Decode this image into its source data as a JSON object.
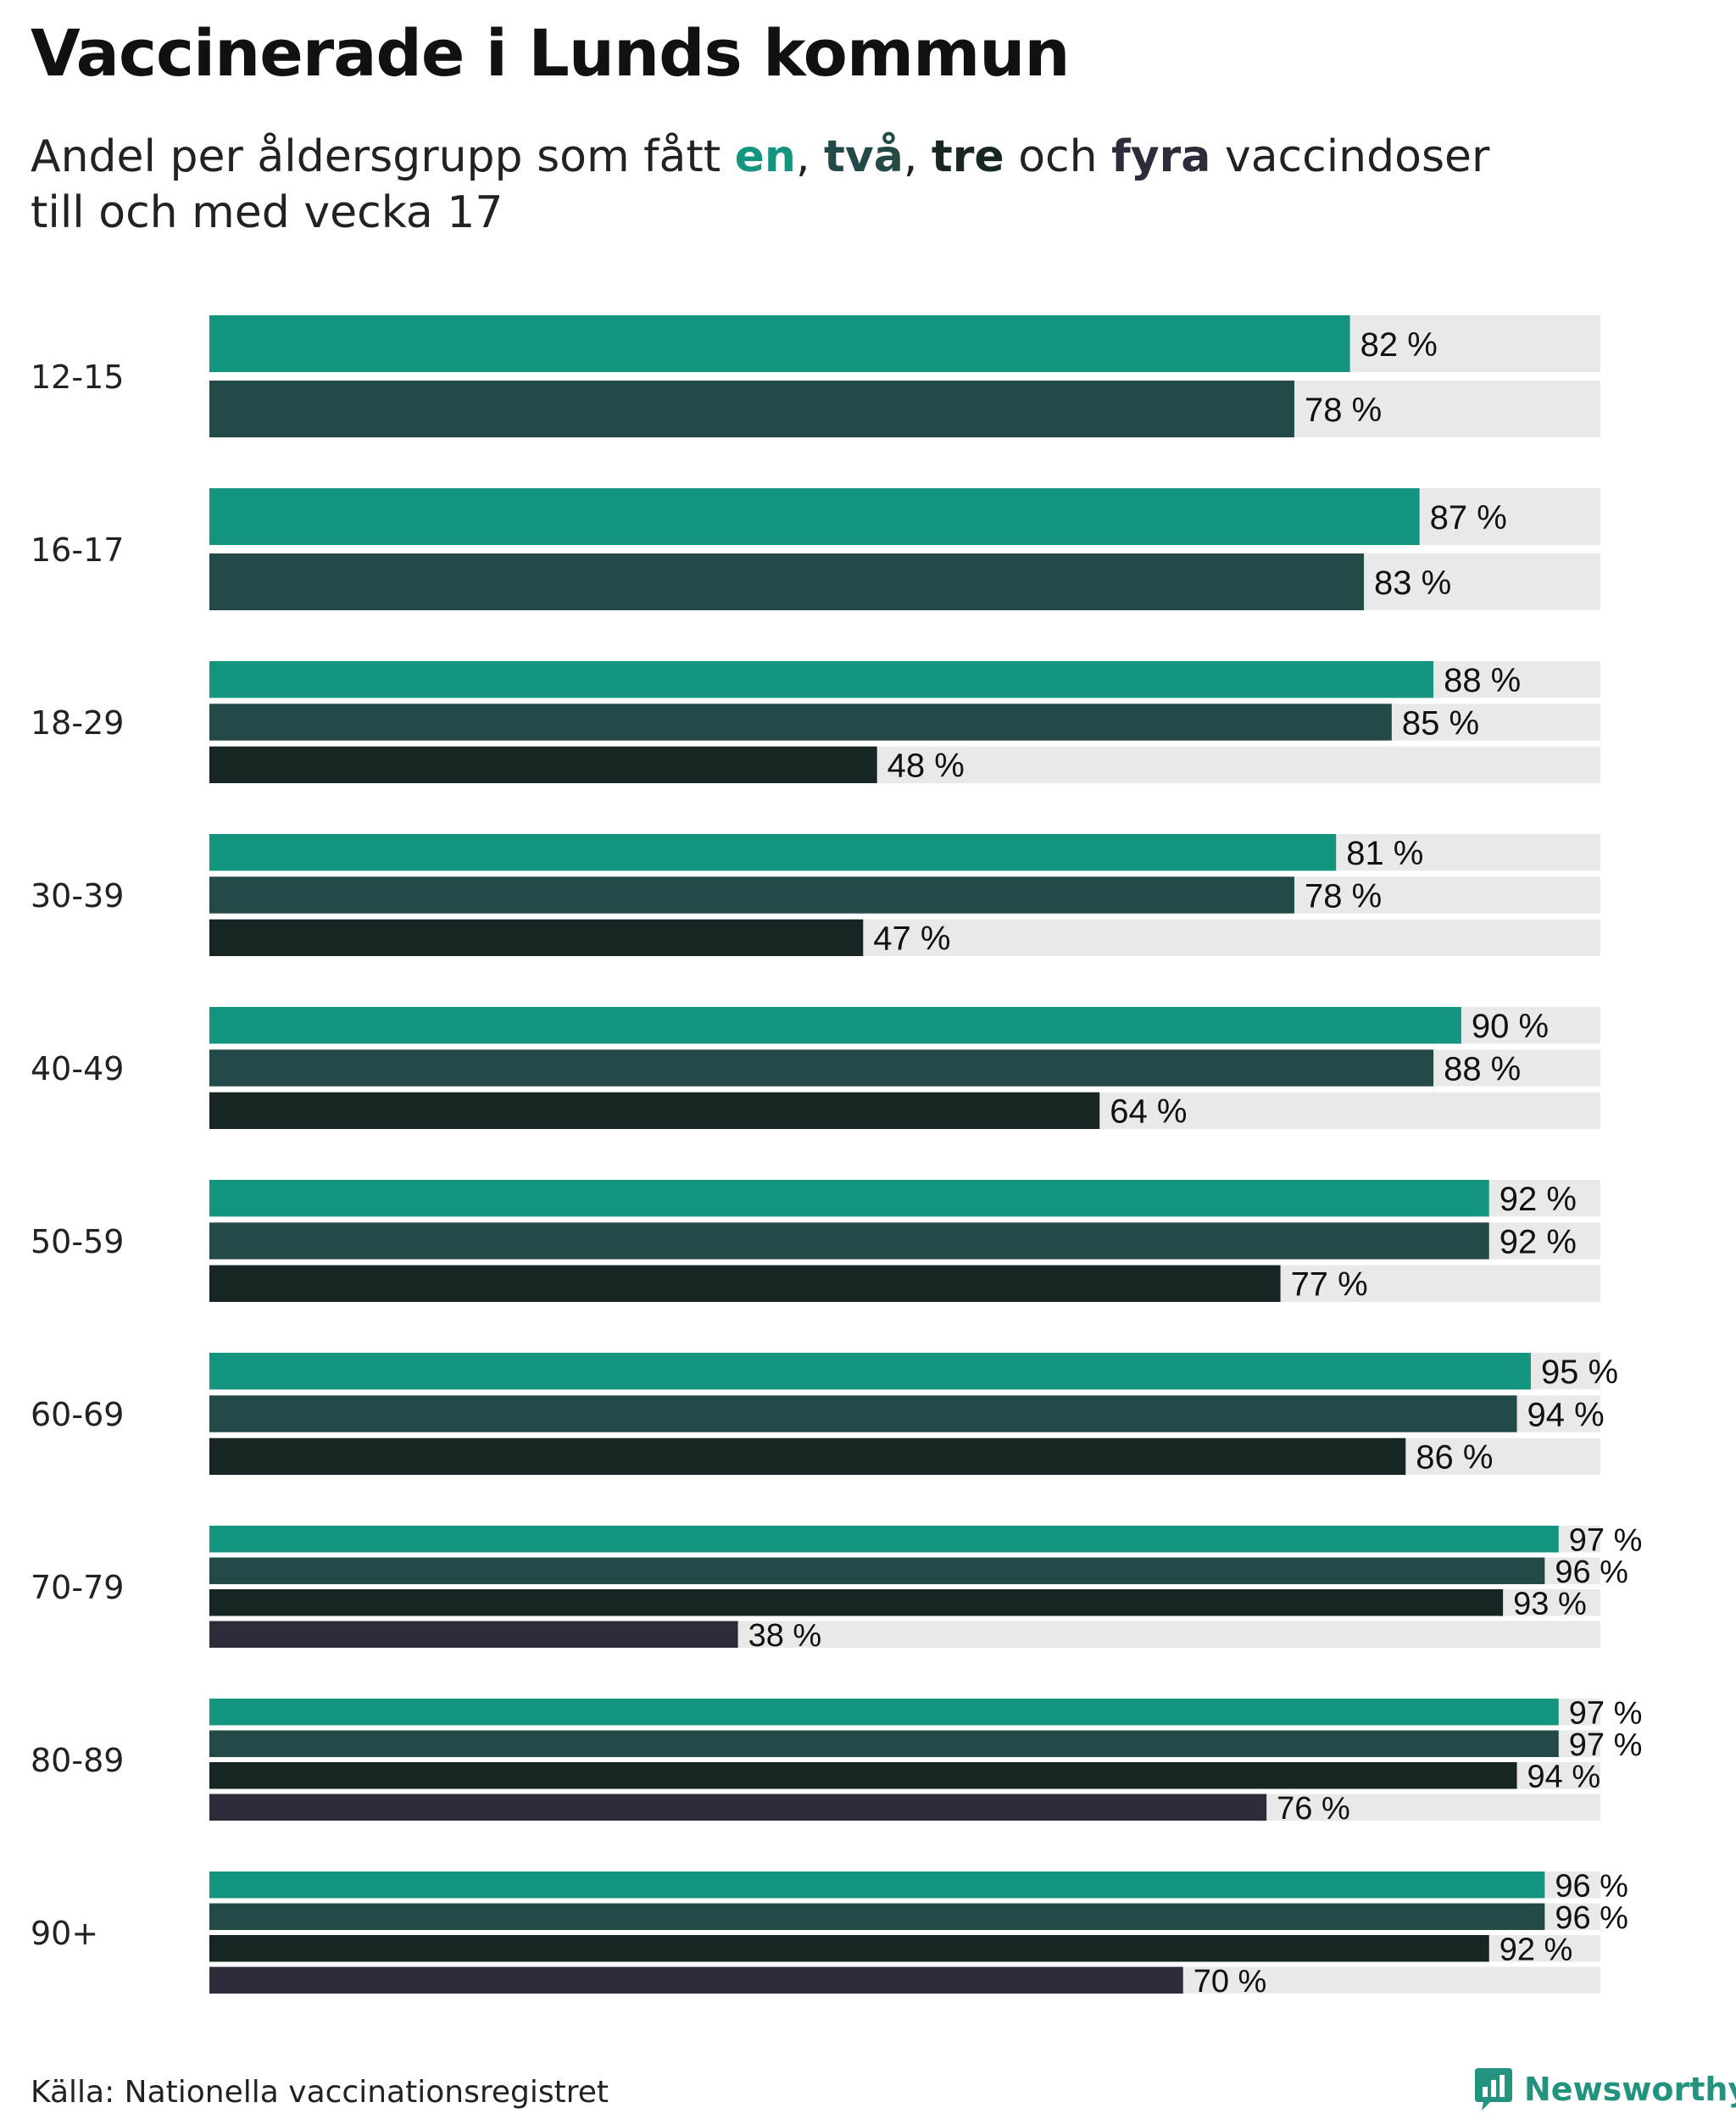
{
  "title": "Vaccinerade i Lunds kommun",
  "subtitle": {
    "pre": "Andel per åldersgrupp som fått ",
    "en": "en",
    "sep1": ", ",
    "tva": "två",
    "sep2": ", ",
    "tre": "tre",
    "och": " och ",
    "fyra": "fyra",
    "post": " vaccindoser",
    "line2": "till och med vecka 17"
  },
  "colors": {
    "en": "#14957f",
    "tva": "#244a47",
    "tre": "#172624",
    "fyra": "#2e2c3a",
    "track": "#e9e9e9"
  },
  "chart_data": {
    "type": "bar",
    "orientation": "horizontal",
    "categories": [
      "12-15",
      "16-17",
      "18-29",
      "30-39",
      "40-49",
      "50-59",
      "60-69",
      "70-79",
      "80-89",
      "90+"
    ],
    "series": [
      {
        "name": "en",
        "values": [
          82,
          87,
          88,
          81,
          90,
          92,
          95,
          97,
          97,
          96
        ]
      },
      {
        "name": "två",
        "values": [
          78,
          83,
          85,
          78,
          88,
          92,
          94,
          96,
          97,
          96
        ]
      },
      {
        "name": "tre",
        "values": [
          null,
          null,
          48,
          47,
          64,
          77,
          86,
          93,
          94,
          92
        ]
      },
      {
        "name": "fyra",
        "values": [
          null,
          null,
          null,
          null,
          null,
          null,
          null,
          38,
          76,
          70
        ]
      }
    ],
    "value_suffix": " %",
    "xlim": [
      0,
      100
    ],
    "grid": false,
    "legend": "none"
  },
  "source": "Källa: Nationella vaccinationsregistret",
  "brand": "Newsworthy"
}
